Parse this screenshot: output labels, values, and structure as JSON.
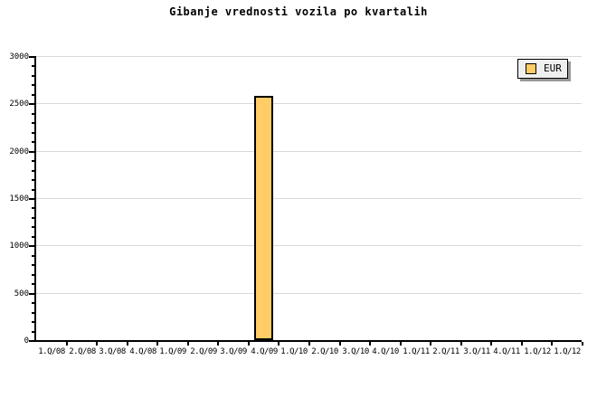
{
  "chart_data": {
    "type": "bar",
    "title": "Gibanje vrednosti vozila po kvartalih",
    "xlabel": "",
    "ylabel": "",
    "categories": [
      "1.Q/08",
      "2.Q/08",
      "3.Q/08",
      "4.Q/08",
      "1.Q/09",
      "2.Q/09",
      "3.Q/09",
      "4.Q/09",
      "1.Q/10",
      "2.Q/10",
      "3.Q/10",
      "4.Q/10",
      "1.Q/11",
      "2.Q/11",
      "3.Q/11",
      "4.Q/11",
      "1.Q/12",
      "1.Q/12"
    ],
    "series": [
      {
        "name": "EUR",
        "values": [
          0,
          0,
          0,
          0,
          0,
          0,
          0,
          2580,
          0,
          0,
          0,
          0,
          0,
          0,
          0,
          0,
          0,
          0
        ]
      }
    ],
    "ylim": [
      0,
      3000
    ],
    "y_major_ticks": [
      0,
      500,
      1000,
      1500,
      2000,
      2500,
      3000
    ],
    "y_major_tick_labels": [
      "0",
      "500",
      "1000",
      "1500",
      "2000",
      "2500",
      "3000"
    ],
    "y_minor_step": 100,
    "grid": "horizontal-major",
    "legend": {
      "position": "top-right",
      "entries": [
        {
          "label": "EUR",
          "color": "#ffcc66"
        }
      ]
    },
    "colors": {
      "bar_fill": "#ffcc66",
      "bar_border": "#000000",
      "grid_line": "#d9d9d9",
      "axis": "#000000",
      "legend_background": "#efefef",
      "legend_shadow": "#999999",
      "background": "#ffffff"
    }
  }
}
